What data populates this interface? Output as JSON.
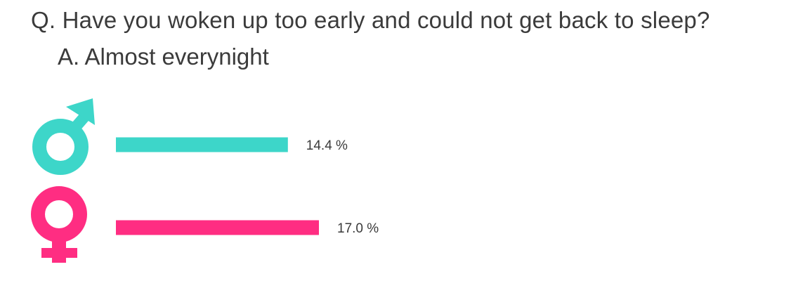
{
  "question": "Q. Have you woken up too early and could not get back to sleep?",
  "answer": "A. Almost everynight",
  "chart_data": {
    "type": "bar",
    "orientation": "horizontal",
    "title": "Q. Have you woken up too early and could not get back to sleep?",
    "subtitle": "A. Almost everynight",
    "categories": [
      "male",
      "female"
    ],
    "values": [
      14.4,
      17.0
    ],
    "labels": [
      "14.4 %",
      "17.0 %"
    ],
    "unit": "%",
    "colors": [
      "#3dd6c9",
      "#ff2d82"
    ],
    "icons": [
      "male-symbol-icon",
      "female-symbol-icon"
    ],
    "xlabel": "",
    "ylabel": "",
    "xlim": [
      0,
      30
    ],
    "grid": false
  }
}
